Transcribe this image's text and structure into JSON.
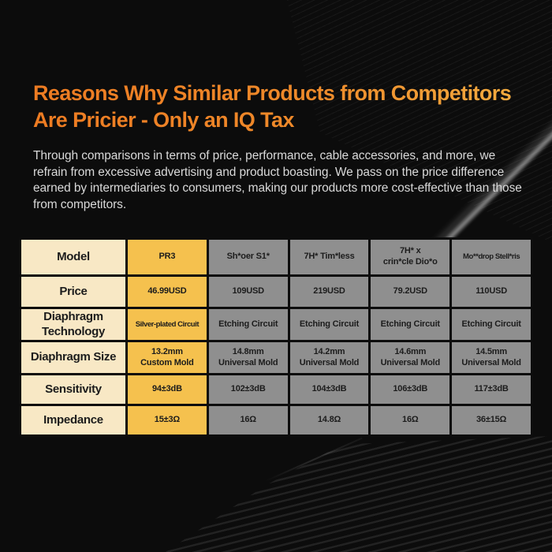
{
  "page": {
    "title_line1": "Reasons Why Similar Products from Competitors",
    "title_line2": "Are Pricier - Only an IQ Tax",
    "intro": "Through comparisons in terms of price, performance, cable accessories, and more, we refrain from excessive advertising and product boasting. We pass on the price difference earned by intermediaries to consumers, making our products more cost-effective than those from competitors."
  },
  "colors": {
    "background": "#0C0C0C",
    "title_orange": "#ED7B22",
    "title_gold": "#F3AE41",
    "paragraph_text": "#D9D9D9",
    "label_column": "#F8E8C5",
    "highlight_column": "#F5C14E",
    "competitor_column": "#8F8F8F",
    "cell_text": "#1C1C1C",
    "table_border": "#0D0D0D"
  },
  "table": {
    "rows": [
      {
        "cells": [
          "Model",
          "PR3",
          "Sh*oer S1*",
          "7H* Tim*less",
          "7H* x\ncrin*cle Dio*o",
          "Mo**drop Stell*ris"
        ]
      },
      {
        "cells": [
          "Price",
          "46.99USD",
          "109USD",
          "219USD",
          "79.2USD",
          "110USD"
        ]
      },
      {
        "cells": [
          "Diaphragm\nTechnology",
          "Silver-plated Circuit",
          "Etching Circuit",
          "Etching Circuit",
          "Etching Circuit",
          "Etching Circuit"
        ]
      },
      {
        "cells": [
          "Diaphragm Size",
          "13.2mm\nCustom Mold",
          "14.8mm\nUniversal Mold",
          "14.2mm\nUniversal Mold",
          "14.6mm\nUniversal Mold",
          "14.5mm\nUniversal Mold"
        ]
      },
      {
        "cells": [
          "Sensitivity",
          "94±3dB",
          "102±3dB",
          "104±3dB",
          "106±3dB",
          "117±3dB"
        ]
      },
      {
        "cells": [
          "Impedance",
          "15±3Ω",
          "16Ω",
          "14.8Ω",
          "16Ω",
          "36±15Ω"
        ]
      }
    ]
  }
}
